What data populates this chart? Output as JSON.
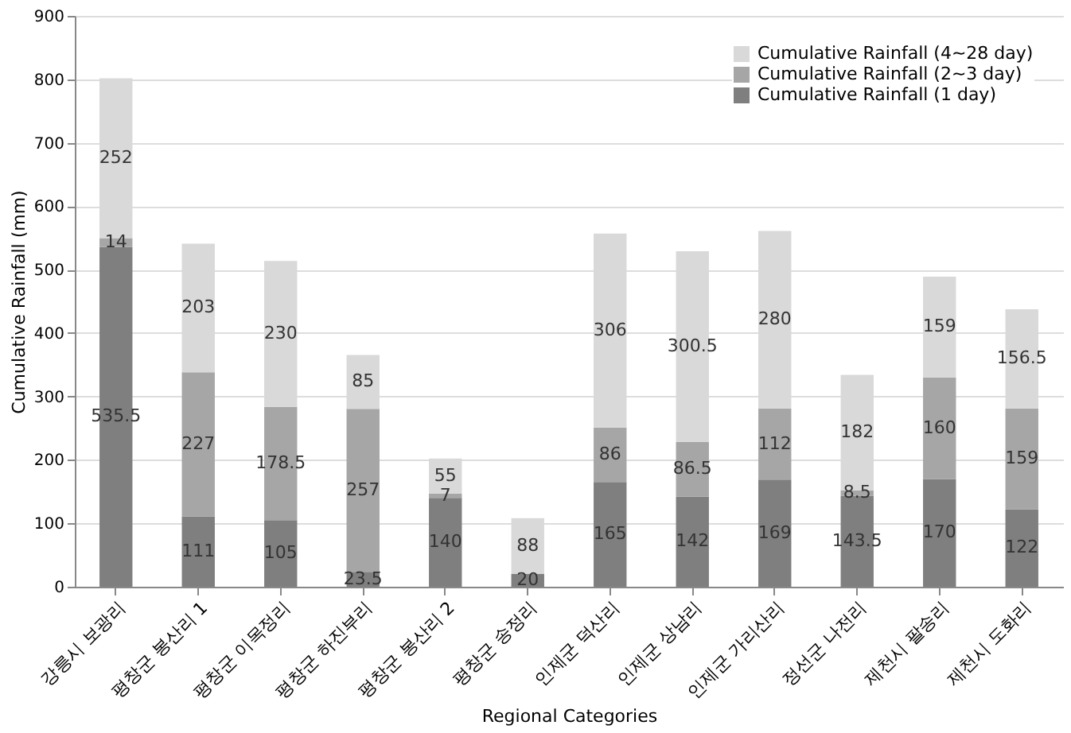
{
  "chart_data": {
    "type": "bar",
    "stacked": true,
    "xlabel": "Regional Categories",
    "ylabel": "Cumulative Rainfall (mm)",
    "categories": [
      "강릉시 보광리",
      "평창군 봉산리 1",
      "평창군 이목정리",
      "평창군 하진부리",
      "평창군 봉산리 2",
      "평창군 송정리",
      "인제군 덕산리",
      "인제군 상남리",
      "인제군 가리산리",
      "정선군 나전리",
      "제천시 팔송리",
      "제천시 도화리"
    ],
    "series": [
      {
        "name": "Cumulative Rainfall (1 day)",
        "color": "#7f7f7f",
        "values": [
          535.5,
          111,
          105,
          23.5,
          140,
          20,
          165,
          142,
          169,
          143.5,
          170,
          122
        ]
      },
      {
        "name": "Cumulative Rainfall (2~3 day)",
        "color": "#a6a6a6",
        "values": [
          14,
          227,
          178.5,
          257,
          7,
          null,
          86,
          86.5,
          112,
          8.5,
          160,
          159
        ]
      },
      {
        "name": "Cumulative Rainfall (4~28 day)",
        "color": "#d9d9d9",
        "values": [
          252,
          203,
          230,
          85,
          55,
          88,
          306,
          300.5,
          280,
          182,
          159,
          156.5
        ]
      }
    ],
    "ylim": [
      0,
      900
    ],
    "yticks": [
      0,
      100,
      200,
      300,
      400,
      500,
      600,
      700,
      800,
      900
    ],
    "grid": "y",
    "legend": "top right",
    "data_labels": true
  }
}
